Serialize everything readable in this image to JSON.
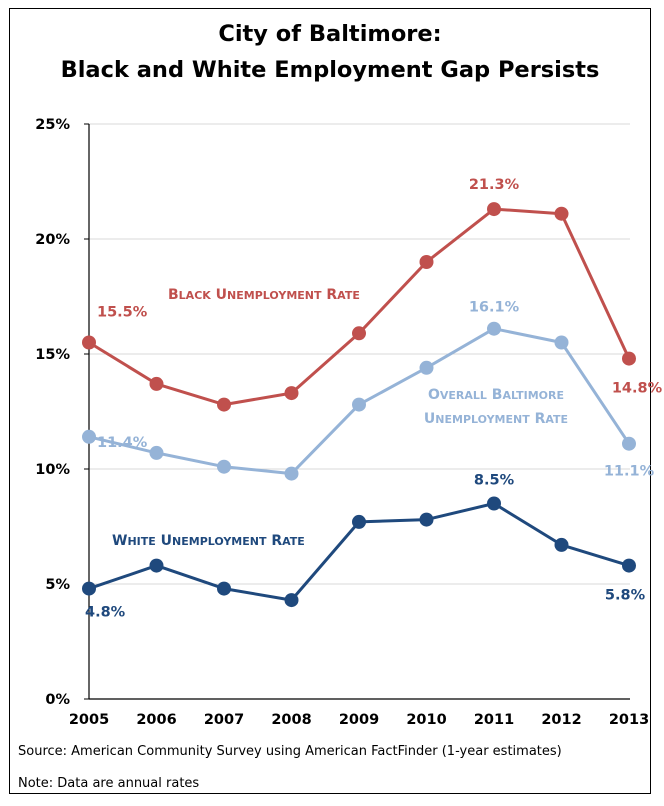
{
  "chart_data": {
    "type": "line",
    "title_lines": [
      "City of Baltimore:",
      "Black and White Employment Gap Persists"
    ],
    "categories": [
      "2005",
      "2006",
      "2007",
      "2008",
      "2009",
      "2010",
      "2011",
      "2012",
      "2013"
    ],
    "ylim": [
      0,
      25
    ],
    "yticks": [
      "0%",
      "5%",
      "10%",
      "15%",
      "20%",
      "25%"
    ],
    "grid": true,
    "series": [
      {
        "name": "Black Unemployment Rate",
        "color": "#c0504d",
        "values": [
          15.5,
          13.7,
          12.8,
          13.3,
          15.9,
          19.0,
          21.3,
          21.1,
          14.8
        ],
        "labels": {
          "0": "15.5%",
          "6": "21.3%",
          "8": "14.8%"
        }
      },
      {
        "name": "Overall Baltimore Unemployment Rate",
        "color": "#95b3d7",
        "values": [
          11.4,
          10.7,
          10.1,
          9.8,
          12.8,
          14.4,
          16.1,
          15.5,
          11.1
        ],
        "labels": {
          "0": "11.4%",
          "6": "16.1%",
          "8": "11.1%"
        }
      },
      {
        "name": "White Unemployment Rate",
        "color": "#1f497d",
        "values": [
          4.8,
          5.8,
          4.8,
          4.3,
          7.7,
          7.8,
          8.5,
          6.7,
          5.8
        ],
        "labels": {
          "0": "4.8%",
          "6": "8.5%",
          "8": "5.8%"
        }
      }
    ]
  },
  "notes": {
    "source": "Source: American Community Survey using American FactFinder (1-year estimates)",
    "note": "Note: Data are annual rates"
  }
}
